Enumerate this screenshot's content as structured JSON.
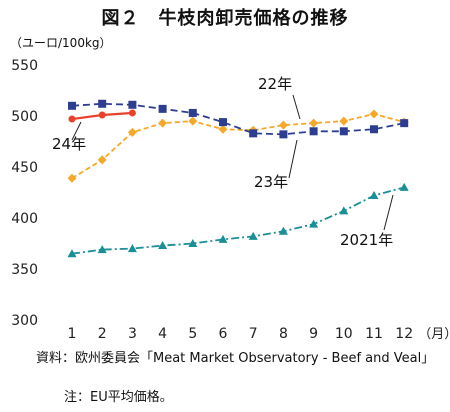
{
  "title": "図２　牛枝肉卸売価格の推移",
  "unit_label": "（ユーロ/100kg）",
  "x_unit": "（月）",
  "notes": {
    "source": "資料：欧州委員会「Meat Market Observatory - Beef and Veal」",
    "note": "注：EU平均価格。"
  },
  "chart_data": {
    "type": "line",
    "categories": [
      "1",
      "2",
      "3",
      "4",
      "5",
      "6",
      "7",
      "8",
      "9",
      "10",
      "11",
      "12"
    ],
    "ylim": [
      300,
      550
    ],
    "yticks": [
      300,
      350,
      400,
      450,
      500,
      550
    ],
    "grid": false,
    "series": [
      {
        "name": "24年",
        "color": "#e8412c",
        "marker": "circle",
        "dash": "solid",
        "values": [
          497,
          501,
          503,
          null,
          null,
          null,
          null,
          null,
          null,
          null,
          null,
          null
        ]
      },
      {
        "name": "23年",
        "color": "#2d3d8f",
        "marker": "square",
        "dash": "dashed",
        "values": [
          510,
          512,
          511,
          507,
          503,
          494,
          483,
          482,
          485,
          485,
          487,
          493
        ]
      },
      {
        "name": "22年",
        "color": "#f4a92a",
        "marker": "diamond",
        "dash": "dotted",
        "values": [
          439,
          457,
          484,
          493,
          495,
          487,
          486,
          491,
          493,
          495,
          502,
          494
        ]
      },
      {
        "name": "2021年",
        "color": "#1a8f96",
        "marker": "triangle",
        "dash": "dashdot",
        "values": [
          365,
          369,
          370,
          373,
          375,
          379,
          382,
          387,
          394,
          407,
          422,
          430
        ]
      }
    ]
  }
}
